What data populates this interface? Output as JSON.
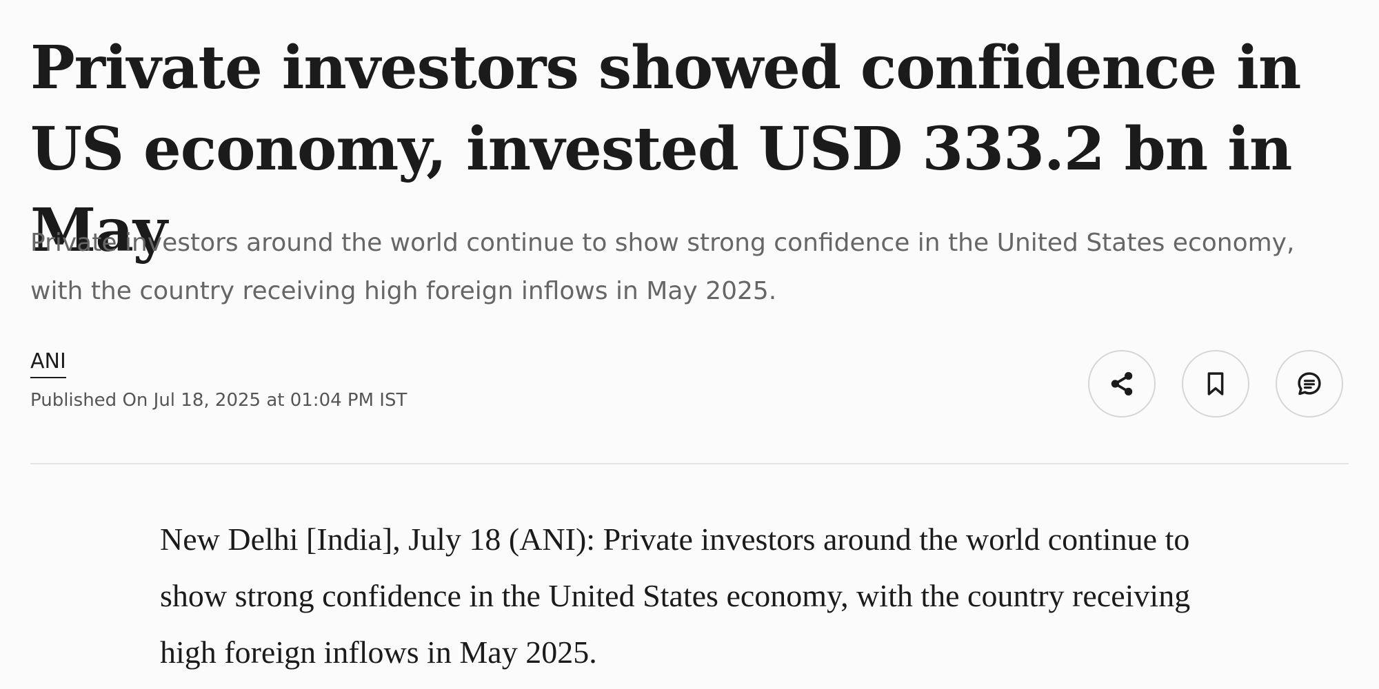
{
  "article": {
    "headline": "Private investors showed confidence in US economy, invested USD 333.2 bn in May",
    "standfirst": "Private investors around the world continue to show strong confidence in the United States economy, with the country receiving high foreign inflows in May 2025.",
    "author": "ANI",
    "published": "Published On Jul 18, 2025 at 01:04 PM IST",
    "body": "New Delhi [India], July 18 (ANI): Private investors around the world continue to show strong confidence in the United States economy, with the country receiving high foreign inflows in May 2025."
  },
  "actions": {
    "share_icon": "share-icon",
    "bookmark_icon": "bookmark-icon",
    "comment_icon": "comment-icon"
  },
  "colors": {
    "text": "#1b1b1b",
    "muted": "#666666",
    "border": "#d6d6d6",
    "background": "#fbfbfb"
  }
}
